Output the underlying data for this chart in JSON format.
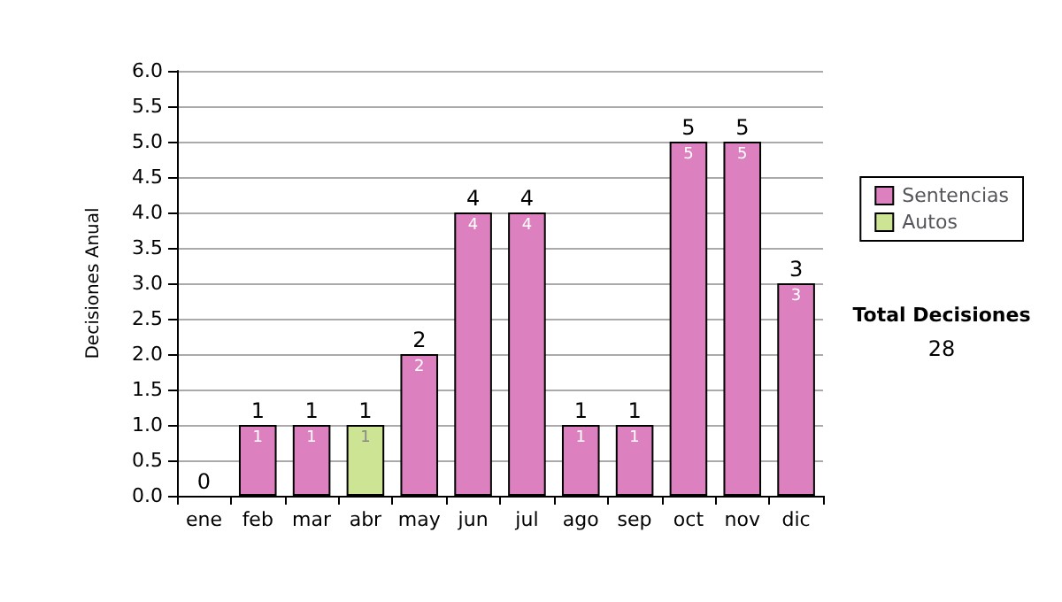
{
  "chart_data": {
    "type": "bar",
    "ylabel": "Decisiones Anual",
    "categories": [
      "ene",
      "feb",
      "mar",
      "abr",
      "may",
      "jun",
      "jul",
      "ago",
      "sep",
      "oct",
      "nov",
      "dic"
    ],
    "stacked": true,
    "series": [
      {
        "name": "Sentencias",
        "color": "#dd80c0",
        "values": [
          0,
          1,
          1,
          0,
          2,
          4,
          4,
          1,
          1,
          5,
          5,
          3
        ],
        "value_labels": [
          null,
          "1",
          "1",
          null,
          "2",
          "4",
          "4",
          "1",
          "1",
          "5",
          "5",
          "3"
        ]
      },
      {
        "name": "Autos",
        "color": "#cce493",
        "values": [
          0,
          0,
          0,
          1,
          0,
          0,
          0,
          0,
          0,
          0,
          0,
          0
        ],
        "value_labels": [
          null,
          null,
          null,
          "1",
          null,
          null,
          null,
          null,
          null,
          null,
          null,
          null
        ]
      }
    ],
    "totals": [
      "0",
      "1",
      "1",
      "1",
      "2",
      "4",
      "4",
      "1",
      "1",
      "5",
      "5",
      "3"
    ],
    "ylim": [
      0,
      6
    ],
    "yticks": [
      {
        "value": 0,
        "label": "0.0"
      },
      {
        "value": 0.5,
        "label": "0.5"
      },
      {
        "value": 1,
        "label": "1.0"
      },
      {
        "value": 1.5,
        "label": "1.5"
      },
      {
        "value": 2,
        "label": "2.0"
      },
      {
        "value": 2.5,
        "label": "2.5"
      },
      {
        "value": 3,
        "label": "3.0"
      },
      {
        "value": 3.5,
        "label": "3.5"
      },
      {
        "value": 4,
        "label": "4.0"
      },
      {
        "value": 4.5,
        "label": "4.5"
      },
      {
        "value": 5,
        "label": "5.0"
      },
      {
        "value": 5.5,
        "label": "5.5"
      },
      {
        "value": 6,
        "label": "6.0"
      }
    ],
    "grid": "y",
    "legend": "right",
    "annotations": [
      "Total Decisiones",
      "28"
    ]
  }
}
